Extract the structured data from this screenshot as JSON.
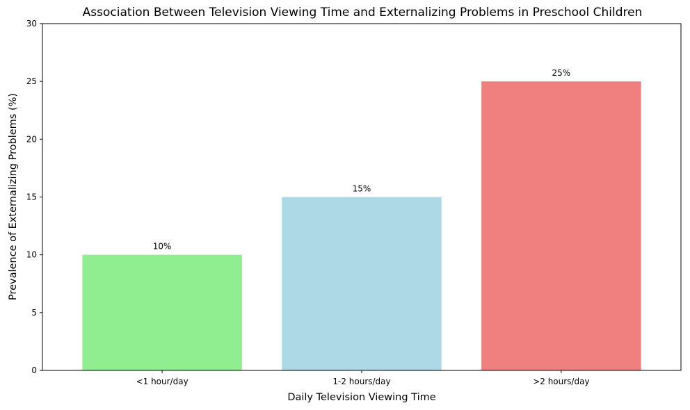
{
  "chart_data": {
    "type": "bar",
    "title": "Association Between Television Viewing Time and Externalizing Problems in Preschool Children",
    "xlabel": "Daily Television Viewing Time",
    "ylabel": "Prevalence of Externalizing Problems (%)",
    "categories": [
      "<1 hour/day",
      "1-2 hours/day",
      ">2 hours/day"
    ],
    "values": [
      10,
      15,
      25
    ],
    "value_labels": [
      "10%",
      "15%",
      "25%"
    ],
    "colors": [
      "#90ee90",
      "#add8e6",
      "#f08080"
    ],
    "ylim": [
      0,
      30
    ],
    "yticks": [
      0,
      5,
      10,
      15,
      20,
      25,
      30
    ],
    "grid": false,
    "legend": "none"
  }
}
